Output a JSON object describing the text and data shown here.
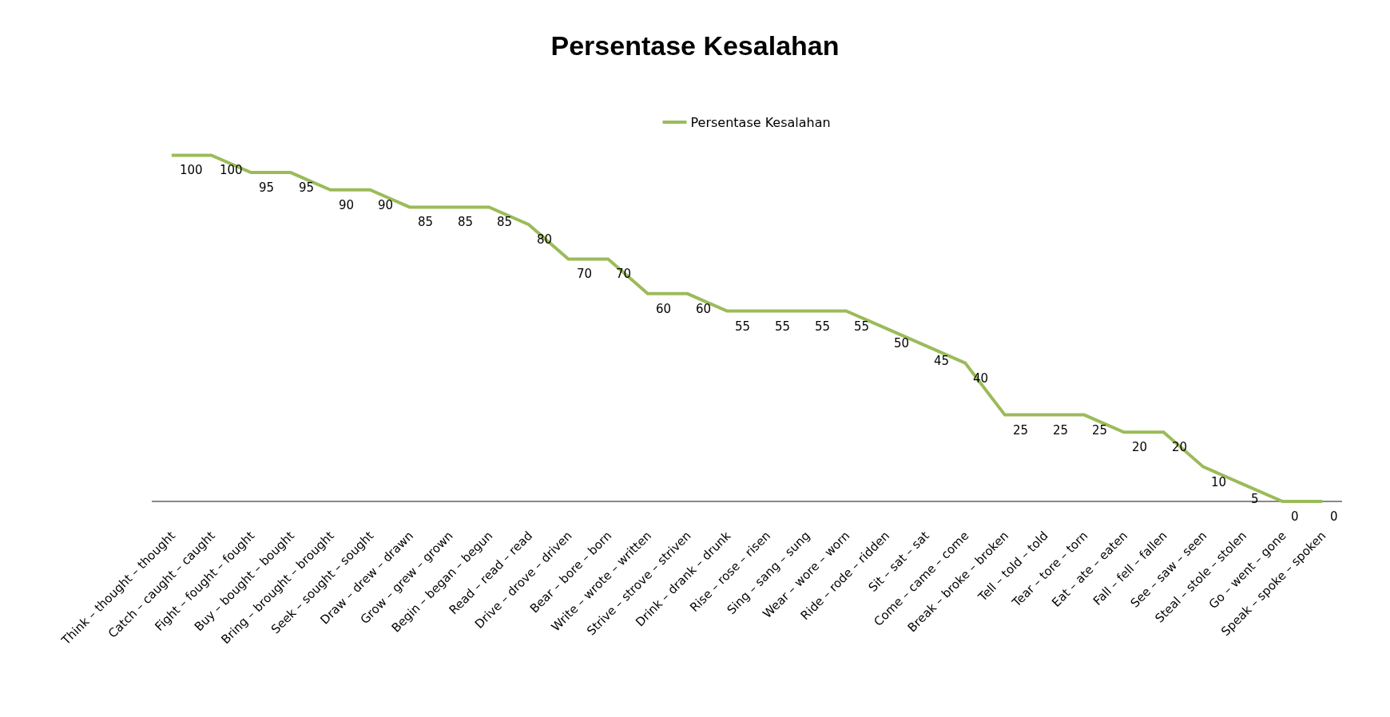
{
  "chart_data": {
    "type": "line",
    "title": "Persentase Kesalahan",
    "categories": [
      "Think – thought – thought",
      "Catch – caught – caught",
      "Fight – fought – fought",
      "Buy – bought – bought",
      "Bring – brought – brought",
      "Seek – sought – sought",
      "Draw – drew – drawn",
      "Grow – grew – grown",
      "Begin – began – begun",
      "Read – read – read",
      "Drive – drove – driven",
      "Bear – bore – born",
      "Write – wrote – written",
      "Strive – strove – striven",
      "Drink – drank – drunk",
      "Rise – rose – risen",
      "Sing – sang – sung",
      "Wear – wore – worn",
      "Ride – rode – ridden",
      "Sit – sat – sat",
      "Come – came – come",
      "Break – broke – broken",
      "Tell – told – told",
      "Tear – tore – torn",
      "Eat – ate – eaten",
      "Fall – fell – fallen",
      "See – saw – seen",
      "Steal – stole – stolen",
      "Go – went – gone",
      "Speak – spoke – spoken"
    ],
    "series": [
      {
        "name": "Persentase Kesalahan",
        "color": "#9bbb59",
        "values": [
          100,
          100,
          95,
          95,
          90,
          90,
          85,
          85,
          85,
          80,
          70,
          70,
          60,
          60,
          55,
          55,
          55,
          55,
          50,
          45,
          40,
          25,
          25,
          25,
          20,
          20,
          10,
          5,
          0,
          0
        ]
      }
    ],
    "data_labels": true,
    "legend": "top",
    "marker": "none",
    "line_style": "solid"
  }
}
